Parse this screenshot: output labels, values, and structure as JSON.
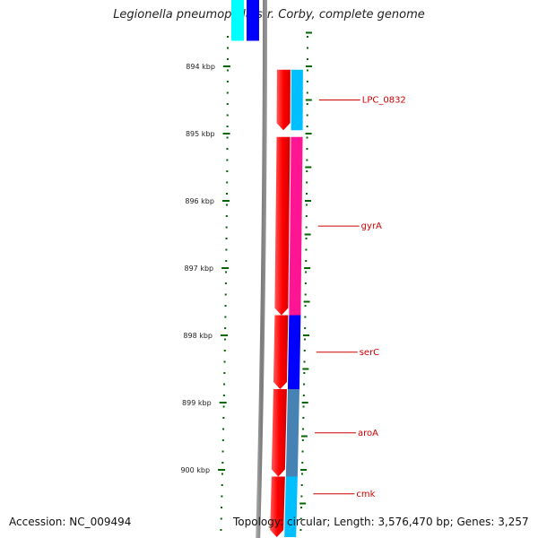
{
  "title": "Legionella pneumophila str. Corby, complete genome",
  "footer": {
    "accession": "Accession: NC_009494",
    "topology": "Topology: circular; Length: 3,576,470 bp; Genes: 3,257"
  },
  "scale": {
    "unit": "kbp",
    "ticks": [
      {
        "kbp": 894,
        "label": "894 kbp"
      },
      {
        "kbp": 895,
        "label": "895 kbp"
      },
      {
        "kbp": 896,
        "label": "896 kbp"
      },
      {
        "kbp": 897,
        "label": "897 kbp"
      },
      {
        "kbp": 898,
        "label": "898 kbp"
      },
      {
        "kbp": 899,
        "label": "899 kbp"
      },
      {
        "kbp": 900,
        "label": "900 kbp"
      }
    ]
  },
  "genes": [
    {
      "name": "LPC_0832",
      "start_kbp": 894.05,
      "end_kbp": 894.95,
      "strand": "+",
      "outer_color": "#00bfff"
    },
    {
      "name": "gyrA",
      "start_kbp": 895.05,
      "end_kbp": 897.7,
      "strand": "+",
      "outer_color": "#ff1493"
    },
    {
      "name": "serC",
      "start_kbp": 897.7,
      "end_kbp": 898.8,
      "strand": "+",
      "outer_color": "#0000ff"
    },
    {
      "name": "aroA",
      "start_kbp": 898.8,
      "end_kbp": 900.1,
      "strand": "+",
      "outer_color": "#4682b4"
    },
    {
      "name": "cmk",
      "start_kbp": 900.1,
      "end_kbp": 901.0,
      "strand": "+",
      "outer_color": "#00bfff"
    }
  ],
  "other_genes": [
    {
      "start_kbp": 893.0,
      "end_kbp": 893.62,
      "outer_color": "#00ffff",
      "inner_color": "#0000ff"
    }
  ],
  "colors": {
    "cds": "#ff0000",
    "backbone": "#808080",
    "ticks": "#006400"
  }
}
